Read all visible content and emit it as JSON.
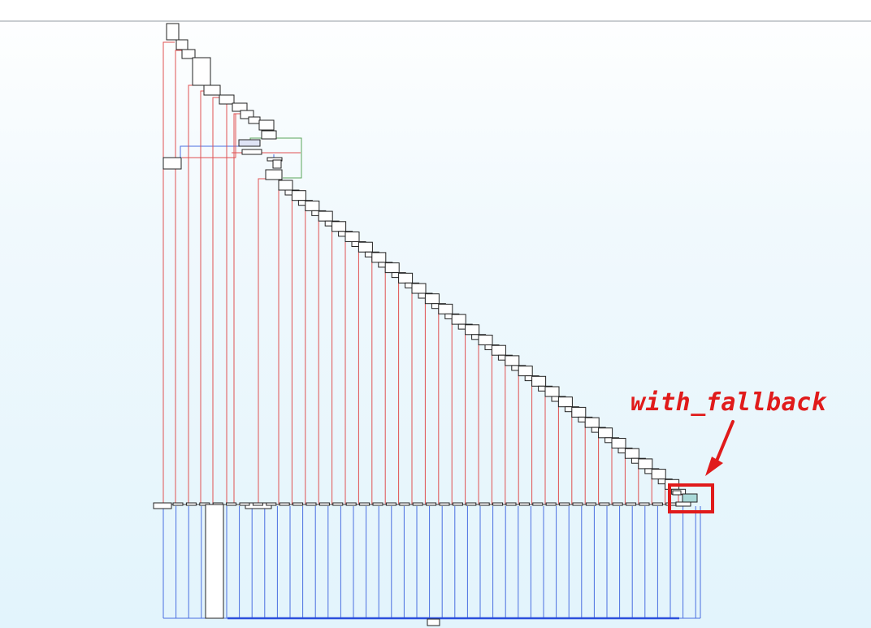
{
  "diagram": {
    "type": "control-flow-graph",
    "annotation": {
      "label": "with_fallback",
      "color": "#e01b1b"
    },
    "colors": {
      "node_border": "#222222",
      "node_fill": "#ffffff",
      "highlight_fill": "#a9d9d8",
      "edge_false": "#e05252",
      "edge_true": "#4a6ee0",
      "edge_back": "#5aa55a",
      "edge_merge": "#2b4fdc",
      "annotation": "#e01b1b"
    }
  }
}
